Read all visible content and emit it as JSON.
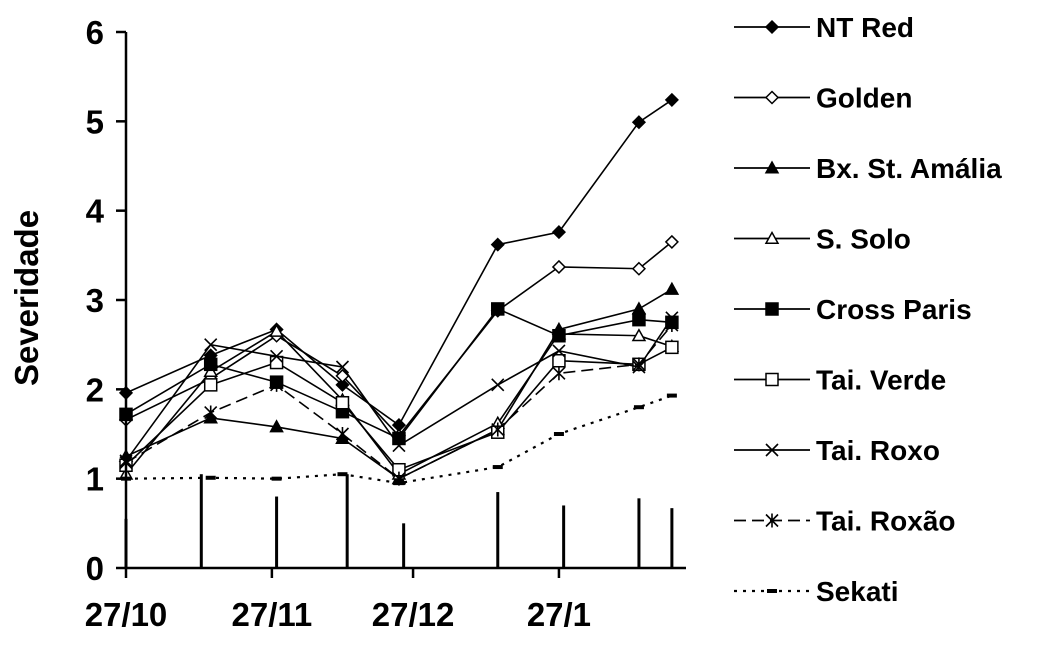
{
  "chart_data": {
    "type": "line",
    "title": "",
    "xlabel": "",
    "ylabel": "Severidade",
    "ylim": [
      0,
      6
    ],
    "yticks": [
      "0",
      "1",
      "2",
      "3",
      "4",
      "5",
      "6"
    ],
    "xlim": [
      "2005-10-27",
      "2006-02-23"
    ],
    "xticks": [
      {
        "date": "2005-10-27",
        "label": "27/10"
      },
      {
        "date": "2005-11-27",
        "label": "27/11"
      },
      {
        "date": "2005-12-27",
        "label": "27/12"
      },
      {
        "date": "2006-01-27",
        "label": "27/1"
      }
    ],
    "x": [
      "2005-10-27",
      "2005-11-14",
      "2005-11-28",
      "2005-12-12",
      "2005-12-24",
      "2006-01-14",
      "2006-01-27",
      "2006-02-13",
      "2006-02-20"
    ],
    "series": [
      {
        "name": "NT Red",
        "marker": "diamond-filled",
        "dash": "solid",
        "values": [
          1.96,
          2.38,
          2.67,
          2.05,
          1.6,
          3.62,
          3.76,
          4.99,
          5.24
        ]
      },
      {
        "name": "Golden",
        "marker": "diamond-open",
        "dash": "solid",
        "values": [
          1.66,
          2.12,
          2.6,
          2.15,
          1.48,
          2.88,
          3.37,
          3.35,
          3.65
        ]
      },
      {
        "name": "Bx. St. Amália",
        "marker": "triangle-filled",
        "dash": "solid",
        "values": [
          1.25,
          1.68,
          1.58,
          1.45,
          1.0,
          1.55,
          2.67,
          2.9,
          3.12
        ]
      },
      {
        "name": "S. Solo",
        "marker": "triangle-open",
        "dash": "solid",
        "values": [
          1.05,
          2.2,
          2.65,
          1.88,
          1.05,
          1.62,
          2.62,
          2.6,
          2.48
        ]
      },
      {
        "name": "Cross Paris",
        "marker": "square-filled",
        "dash": "solid",
        "values": [
          1.72,
          2.28,
          2.08,
          1.75,
          1.45,
          2.9,
          2.6,
          2.78,
          2.75
        ]
      },
      {
        "name": "Tai. Verde",
        "marker": "square-open",
        "dash": "solid",
        "values": [
          1.15,
          2.05,
          2.3,
          1.85,
          1.1,
          1.52,
          2.32,
          2.28,
          2.47
        ]
      },
      {
        "name": "Tai. Roxo",
        "marker": "x",
        "dash": "solid",
        "values": [
          1.2,
          2.5,
          2.37,
          2.25,
          1.37,
          2.05,
          2.43,
          2.25,
          2.8
        ]
      },
      {
        "name": "Tai. Roxão",
        "marker": "asterisk",
        "dash": "dashed",
        "values": [
          1.18,
          1.74,
          2.05,
          1.5,
          1.0,
          1.55,
          2.18,
          2.28,
          2.72
        ]
      },
      {
        "name": "Sekati",
        "marker": "dash",
        "dash": "dotted",
        "values": [
          1.0,
          1.01,
          1.0,
          1.05,
          0.95,
          1.13,
          1.5,
          1.8,
          1.93
        ]
      }
    ],
    "bars": {
      "type": "bar",
      "x": [
        "2005-10-27",
        "2005-11-12",
        "2005-11-28",
        "2005-12-13",
        "2005-12-25",
        "2006-01-14",
        "2006-01-28",
        "2006-02-13",
        "2006-02-20"
      ],
      "values": [
        0.55,
        1.05,
        0.8,
        1.05,
        0.5,
        0.85,
        0.7,
        0.78,
        0.67
      ]
    },
    "legend": "right",
    "grid": false
  }
}
